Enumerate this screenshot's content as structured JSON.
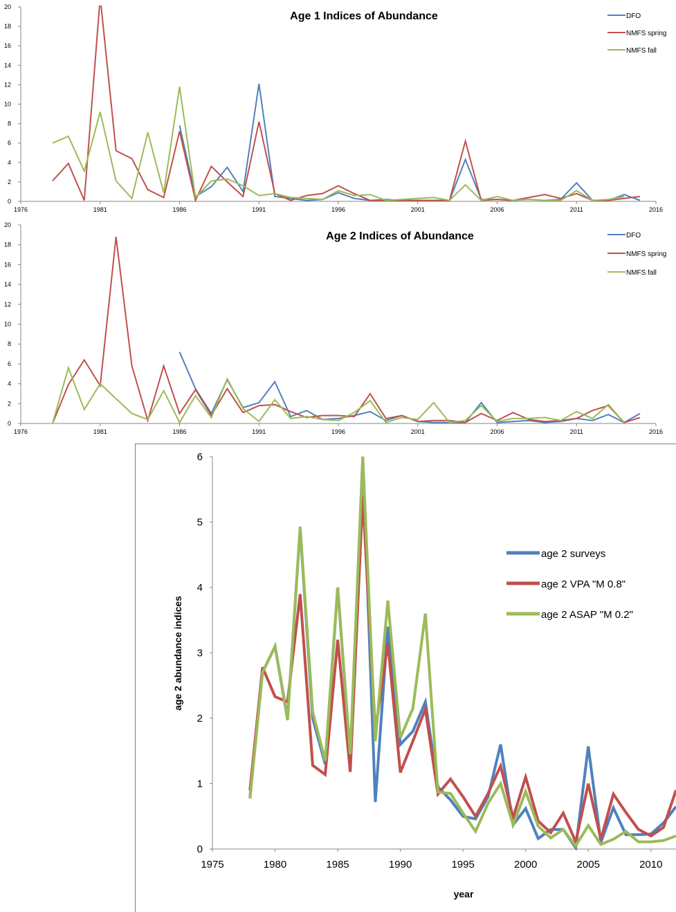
{
  "chart_data": [
    {
      "type": "line",
      "title": "Age 1 Indices of Abundance",
      "xlim": [
        1976,
        2016
      ],
      "xticks": [
        1976,
        1981,
        1986,
        1991,
        1996,
        2001,
        2006,
        2011,
        2016
      ],
      "ylim": [
        0,
        20
      ],
      "yticks": [
        0,
        2,
        4,
        6,
        8,
        10,
        12,
        14,
        16,
        18,
        20
      ],
      "grid": false,
      "legend_position": "top-right",
      "series": [
        {
          "name": "DFO",
          "color": "#4f81bd",
          "x": [
            1986,
            1987,
            1988,
            1989,
            1990,
            1991,
            1992,
            1993,
            1994,
            1995,
            1996,
            1997,
            1998,
            1999,
            2000,
            2001,
            2002,
            2003,
            2004,
            2005,
            2006,
            2007,
            2008,
            2009,
            2010,
            2011,
            2012,
            2013,
            2014,
            2015
          ],
          "y": [
            7.8,
            0.5,
            1.5,
            3.5,
            1.0,
            12.1,
            0.5,
            0.3,
            0.1,
            0.2,
            0.9,
            0.3,
            0.1,
            0.2,
            0.1,
            0.1,
            0.1,
            0.1,
            4.3,
            0.2,
            0.2,
            0.1,
            0.2,
            0.1,
            0.2,
            1.9,
            0.1,
            0.1,
            0.7,
            0.1
          ]
        },
        {
          "name": "NMFS spring",
          "color": "#c0504d",
          "x": [
            1978,
            1979,
            1980,
            1981,
            1982,
            1983,
            1984,
            1985,
            1986,
            1987,
            1988,
            1989,
            1990,
            1991,
            1992,
            1993,
            1994,
            1995,
            1996,
            1997,
            1998,
            1999,
            2000,
            2001,
            2002,
            2003,
            2004,
            2005,
            2006,
            2007,
            2008,
            2009,
            2010,
            2011,
            2012,
            2013,
            2014,
            2015
          ],
          "y": [
            2.1,
            3.9,
            0.1,
            21.0,
            5.2,
            4.4,
            1.2,
            0.4,
            7.2,
            0.1,
            3.6,
            2.0,
            0.5,
            8.2,
            0.8,
            0.1,
            0.6,
            0.8,
            1.6,
            0.8,
            0.1,
            0.1,
            0.1,
            0.1,
            0.1,
            0.1,
            6.2,
            0.1,
            0.2,
            0.1,
            0.4,
            0.7,
            0.3,
            0.8,
            0.1,
            0.1,
            0.3,
            0.5
          ]
        },
        {
          "name": "NMFS fall",
          "color": "#9bbb59",
          "x": [
            1978,
            1979,
            1980,
            1981,
            1982,
            1983,
            1984,
            1985,
            1986,
            1987,
            1988,
            1989,
            1990,
            1991,
            1992,
            1993,
            1994,
            1995,
            1996,
            1997,
            1998,
            1999,
            2000,
            2001,
            2002,
            2003,
            2004,
            2005,
            2006,
            2007,
            2008,
            2009,
            2010,
            2011,
            2012,
            2013,
            2014
          ],
          "y": [
            6.0,
            6.7,
            3.1,
            9.2,
            2.1,
            0.3,
            7.1,
            0.9,
            11.8,
            0.4,
            2.1,
            2.3,
            1.6,
            0.6,
            0.8,
            0.4,
            0.3,
            0.2,
            1.1,
            0.6,
            0.7,
            0.1,
            0.2,
            0.3,
            0.4,
            0.1,
            1.7,
            0.1,
            0.5,
            0.1,
            0.2,
            0.1,
            0.1,
            1.1,
            0.1,
            0.2,
            0.5
          ]
        }
      ]
    },
    {
      "type": "line",
      "title": "Age 2 Indices of Abundance",
      "xlim": [
        1976,
        2016
      ],
      "xticks": [
        1976,
        1981,
        1986,
        1991,
        1996,
        2001,
        2006,
        2011,
        2016
      ],
      "ylim": [
        0,
        20
      ],
      "yticks": [
        0,
        2,
        4,
        6,
        8,
        10,
        12,
        14,
        16,
        18,
        20
      ],
      "grid": false,
      "legend_position": "top-right",
      "series": [
        {
          "name": "DFO",
          "color": "#4f81bd",
          "x": [
            1986,
            1987,
            1988,
            1989,
            1990,
            1991,
            1992,
            1993,
            1994,
            1995,
            1996,
            1997,
            1998,
            1999,
            2000,
            2001,
            2002,
            2003,
            2004,
            2005,
            2006,
            2007,
            2008,
            2009,
            2010,
            2011,
            2012,
            2013,
            2014,
            2015
          ],
          "y": [
            7.2,
            3.5,
            1.0,
            4.4,
            1.6,
            2.1,
            4.2,
            0.7,
            1.3,
            0.4,
            0.5,
            0.8,
            1.2,
            0.3,
            0.8,
            0.2,
            0.1,
            0.1,
            0.1,
            2.1,
            0.1,
            0.2,
            0.3,
            0.1,
            0.2,
            0.5,
            0.3,
            0.9,
            0.1,
            1.0
          ]
        },
        {
          "name": "NMFS spring",
          "color": "#c0504d",
          "x": [
            1978,
            1979,
            1980,
            1981,
            1982,
            1983,
            1984,
            1985,
            1986,
            1987,
            1988,
            1989,
            1990,
            1991,
            1992,
            1993,
            1994,
            1995,
            1996,
            1997,
            1998,
            1999,
            2000,
            2001,
            2002,
            2003,
            2004,
            2005,
            2006,
            2007,
            2008,
            2009,
            2010,
            2011,
            2012,
            2013,
            2014,
            2015
          ],
          "y": [
            0.0,
            3.9,
            6.4,
            3.8,
            18.8,
            5.8,
            0.3,
            5.8,
            1.0,
            3.4,
            0.8,
            3.5,
            1.1,
            1.8,
            1.9,
            1.2,
            0.6,
            0.8,
            0.8,
            0.7,
            3.0,
            0.5,
            0.8,
            0.2,
            0.3,
            0.3,
            0.1,
            1.0,
            0.3,
            1.1,
            0.4,
            0.2,
            0.3,
            0.5,
            1.3,
            1.8,
            0.1,
            0.6
          ]
        },
        {
          "name": "NMFS fall",
          "color": "#9bbb59",
          "x": [
            1978,
            1979,
            1980,
            1981,
            1982,
            1983,
            1984,
            1985,
            1986,
            1987,
            1988,
            1989,
            1990,
            1991,
            1992,
            1993,
            1994,
            1995,
            1996,
            1997,
            1998,
            1999,
            2000,
            2001,
            2002,
            2003,
            2004,
            2005,
            2006,
            2007,
            2008,
            2009,
            2010,
            2011,
            2012,
            2013,
            2014
          ],
          "y": [
            0.0,
            5.6,
            1.4,
            4.0,
            2.5,
            1.0,
            0.4,
            3.3,
            0.1,
            2.8,
            0.6,
            4.5,
            1.5,
            0.2,
            2.4,
            0.5,
            0.7,
            0.4,
            0.3,
            1.1,
            2.3,
            0.1,
            0.6,
            0.4,
            2.1,
            0.1,
            0.3,
            1.8,
            0.2,
            0.5,
            0.5,
            0.6,
            0.3,
            1.2,
            0.5,
            1.9,
            0.1
          ]
        }
      ]
    },
    {
      "type": "line",
      "title": "",
      "xlabel": "year",
      "ylabel": "age 2 abundance  indices",
      "xlim": [
        1975,
        2012
      ],
      "xticks": [
        1975,
        1980,
        1985,
        1990,
        1995,
        2000,
        2005,
        2010
      ],
      "ylim": [
        0,
        6
      ],
      "yticks": [
        0,
        1,
        2,
        3,
        4,
        5,
        6
      ],
      "grid": false,
      "legend_position": "right",
      "series": [
        {
          "name": "age 2 surveys",
          "color": "#4f81bd",
          "x": [
            1978,
            1979,
            1980,
            1981,
            1982,
            1983,
            1984,
            1985,
            1986,
            1987,
            1988,
            1989,
            1990,
            1991,
            1992,
            1993,
            1994,
            1995,
            1996,
            1997,
            1998,
            1999,
            2000,
            2001,
            2002,
            2003,
            2004,
            2005,
            2006,
            2007,
            2008,
            2009,
            2010,
            2011,
            2012
          ],
          "y": [
            0.8,
            2.7,
            3.1,
            2.0,
            4.9,
            2.0,
            1.3,
            4.0,
            1.4,
            6.0,
            0.72,
            3.4,
            1.6,
            1.8,
            2.25,
            0.95,
            0.75,
            0.5,
            0.46,
            0.8,
            1.6,
            0.37,
            0.62,
            0.16,
            0.3,
            0.3,
            0.02,
            1.57,
            0.1,
            0.63,
            0.22,
            0.22,
            0.23,
            0.4,
            0.65
          ]
        },
        {
          "name": "age 2 VPA \"M 0.8\"",
          "color": "#c0504d",
          "x": [
            1978,
            1979,
            1980,
            1981,
            1982,
            1983,
            1984,
            1985,
            1986,
            1987,
            1988,
            1989,
            1990,
            1991,
            1992,
            1993,
            1994,
            1995,
            1996,
            1997,
            1998,
            1999,
            2000,
            2001,
            2002,
            2003,
            2004,
            2005,
            2006,
            2007,
            2008,
            2009,
            2010,
            2011,
            2012
          ],
          "y": [
            0.9,
            2.78,
            2.33,
            2.25,
            3.9,
            1.28,
            1.14,
            3.2,
            1.18,
            5.4,
            1.8,
            3.15,
            1.17,
            1.65,
            2.14,
            0.84,
            1.07,
            0.8,
            0.5,
            0.85,
            1.27,
            0.48,
            1.1,
            0.43,
            0.25,
            0.55,
            0.11,
            1.0,
            0.15,
            0.84,
            0.56,
            0.3,
            0.2,
            0.33,
            0.9
          ]
        },
        {
          "name": "age 2 ASAP \"M 0.2\"",
          "color": "#9bbb59",
          "x": [
            1978,
            1979,
            1980,
            1981,
            1982,
            1983,
            1984,
            1985,
            1986,
            1987,
            1988,
            1989,
            1990,
            1991,
            1992,
            1993,
            1994,
            1995,
            1996,
            1997,
            1998,
            1999,
            2000,
            2001,
            2002,
            2003,
            2004,
            2005,
            2006,
            2007,
            2008,
            2009,
            2010,
            2011,
            2012
          ],
          "y": [
            0.77,
            2.7,
            3.1,
            1.97,
            4.93,
            2.1,
            1.35,
            4.0,
            1.45,
            6.0,
            1.65,
            3.8,
            1.7,
            2.15,
            3.6,
            0.87,
            0.85,
            0.55,
            0.27,
            0.7,
            1.0,
            0.37,
            0.88,
            0.35,
            0.17,
            0.3,
            0.05,
            0.36,
            0.07,
            0.15,
            0.27,
            0.11,
            0.11,
            0.13,
            0.2
          ]
        }
      ]
    }
  ]
}
